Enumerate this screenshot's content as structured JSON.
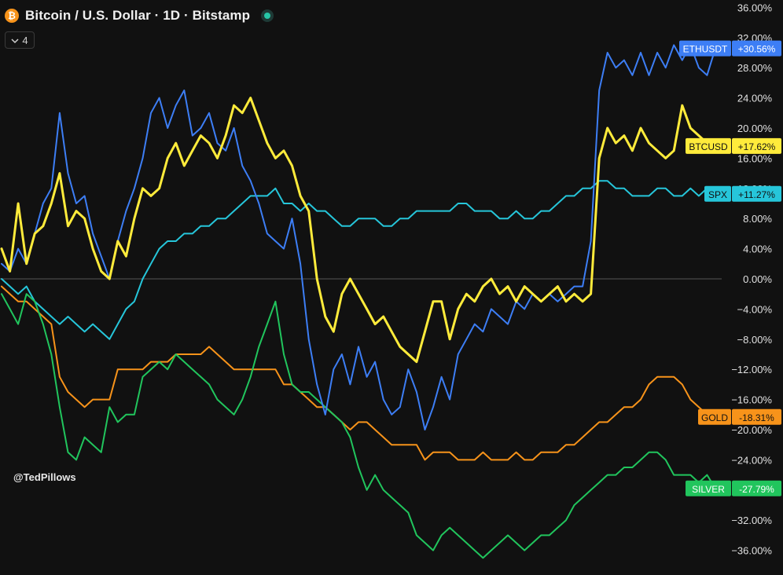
{
  "header": {
    "coin_icon_glyph": "₿",
    "title": "Bitcoin / U.S. Dollar · 1D · Bitstamp",
    "status_dot_color": "#26c6a6"
  },
  "toolbar": {
    "collapse_count": "4",
    "collapse_icon": "chevron-down-icon"
  },
  "watermark": "@TedPillows",
  "chart_data": {
    "type": "line",
    "y_unit": "%",
    "ylim": [
      -38,
      37
    ],
    "yticks": [
      36,
      32,
      28,
      24,
      20,
      16,
      12,
      8,
      4,
      0,
      -4,
      -8,
      -12,
      -16,
      -20,
      -24,
      -28,
      -32,
      -36
    ],
    "ytick_labels": [
      "36.00%",
      "32.00%",
      "28.00%",
      "24.00%",
      "20.00%",
      "16.00%",
      "12.00%",
      "8.00%",
      "4.00%",
      "0.00%",
      "−4.00%",
      "−8.00%",
      "−12.00%",
      "−16.00%",
      "−20.00%",
      "−24.00%",
      "−28.00%",
      "−32.00%",
      "−36.00%"
    ],
    "baseline": 0,
    "grid": false,
    "series": [
      {
        "name": "ETHUSDT",
        "value_label": "+30.56%",
        "last": 30.56,
        "color": "#3d7ef5",
        "width": 2,
        "values": [
          2,
          1,
          4,
          2,
          6,
          10,
          12,
          22,
          14,
          10,
          11,
          6,
          3,
          0,
          5,
          9,
          12,
          16,
          22,
          24,
          20,
          23,
          25,
          19,
          20,
          22,
          18,
          17,
          20,
          15,
          13,
          10,
          6,
          5,
          4,
          8,
          2,
          -8,
          -14,
          -18,
          -12,
          -10,
          -14,
          -9,
          -13,
          -11,
          -16,
          -18,
          -17,
          -12,
          -15,
          -20,
          -17,
          -13,
          -16,
          -10,
          -8,
          -6,
          -7,
          -4,
          -5,
          -6,
          -3,
          -4,
          -2,
          -3,
          -2,
          -3,
          -2,
          -1,
          -1,
          5,
          25,
          30,
          28,
          29,
          27,
          30,
          27,
          30,
          28,
          31,
          29,
          31,
          28,
          27,
          30.56
        ]
      },
      {
        "name": "BTCUSD",
        "value_label": "+17.62%",
        "last": 17.62,
        "color": "#ffeb3b",
        "width": 3,
        "values": [
          4,
          1,
          10,
          2,
          6,
          7,
          10,
          14,
          7,
          9,
          8,
          4,
          1,
          0,
          5,
          3,
          8,
          12,
          11,
          12,
          16,
          18,
          15,
          17,
          19,
          18,
          16,
          19,
          23,
          22,
          24,
          21,
          18,
          16,
          17,
          15,
          11,
          9,
          0,
          -5,
          -7,
          -2,
          0,
          -2,
          -4,
          -6,
          -5,
          -7,
          -9,
          -10,
          -11,
          -7,
          -3,
          -3,
          -8,
          -4,
          -2,
          -3,
          -1,
          0,
          -2,
          -1,
          -3,
          -1,
          -2,
          -3,
          -2,
          -1,
          -3,
          -2,
          -3,
          -2,
          16,
          20,
          18,
          19,
          17,
          20,
          18,
          17,
          16,
          17,
          23,
          20,
          19,
          18,
          17.62
        ]
      },
      {
        "name": "SPX",
        "value_label": "+11.27%",
        "last": 11.27,
        "color": "#26c6da",
        "width": 2,
        "values": [
          0,
          -1,
          -2,
          -1,
          -3,
          -4,
          -5,
          -6,
          -5,
          -6,
          -7,
          -6,
          -7,
          -8,
          -6,
          -4,
          -3,
          0,
          2,
          4,
          5,
          5,
          6,
          6,
          7,
          7,
          8,
          8,
          9,
          10,
          11,
          11,
          11,
          12,
          10,
          10,
          9,
          10,
          9,
          9,
          8,
          7,
          7,
          8,
          8,
          8,
          7,
          7,
          8,
          8,
          9,
          9,
          9,
          9,
          9,
          10,
          10,
          9,
          9,
          9,
          8,
          8,
          9,
          8,
          8,
          9,
          9,
          10,
          11,
          11,
          12,
          12,
          13,
          13,
          12,
          12,
          11,
          11,
          11,
          12,
          12,
          11,
          11,
          12,
          11,
          12,
          11.27
        ]
      },
      {
        "name": "GOLD",
        "value_label": "-18.31%",
        "last": -18.31,
        "color": "#f7931a",
        "width": 2,
        "values": [
          -1,
          -2,
          -3,
          -3,
          -4,
          -5,
          -6,
          -13,
          -15,
          -16,
          -17,
          -16,
          -16,
          -16,
          -12,
          -12,
          -12,
          -12,
          -11,
          -11,
          -11,
          -10,
          -10,
          -10,
          -10,
          -9,
          -10,
          -11,
          -12,
          -12,
          -12,
          -12,
          -12,
          -12,
          -14,
          -14,
          -15,
          -16,
          -17,
          -17,
          -18,
          -19,
          -20,
          -19,
          -19,
          -20,
          -21,
          -22,
          -22,
          -22,
          -22,
          -24,
          -23,
          -23,
          -23,
          -24,
          -24,
          -24,
          -23,
          -24,
          -24,
          -24,
          -23,
          -24,
          -24,
          -23,
          -23,
          -23,
          -22,
          -22,
          -21,
          -20,
          -19,
          -19,
          -18,
          -17,
          -17,
          -16,
          -14,
          -13,
          -13,
          -13,
          -14,
          -16,
          -17,
          -18,
          -18.31
        ]
      },
      {
        "name": "SILVER",
        "value_label": "-27.79%",
        "last": -27.79,
        "color": "#21c55d",
        "width": 2,
        "values": [
          -2,
          -4,
          -6,
          -2,
          -3,
          -6,
          -10,
          -17,
          -23,
          -24,
          -21,
          -22,
          -23,
          -17,
          -19,
          -18,
          -18,
          -13,
          -12,
          -11,
          -12,
          -10,
          -11,
          -12,
          -13,
          -14,
          -16,
          -17,
          -18,
          -16,
          -13,
          -9,
          -6,
          -3,
          -10,
          -14,
          -15,
          -15,
          -16,
          -17,
          -18,
          -19,
          -21,
          -25,
          -28,
          -26,
          -28,
          -29,
          -30,
          -31,
          -34,
          -35,
          -36,
          -34,
          -33,
          -34,
          -35,
          -36,
          -37,
          -36,
          -35,
          -34,
          -35,
          -36,
          -35,
          -34,
          -34,
          -33,
          -32,
          -30,
          -29,
          -28,
          -27,
          -26,
          -26,
          -25,
          -25,
          -24,
          -23,
          -23,
          -24,
          -26,
          -26,
          -26,
          -27,
          -26,
          -27.79
        ]
      }
    ]
  }
}
